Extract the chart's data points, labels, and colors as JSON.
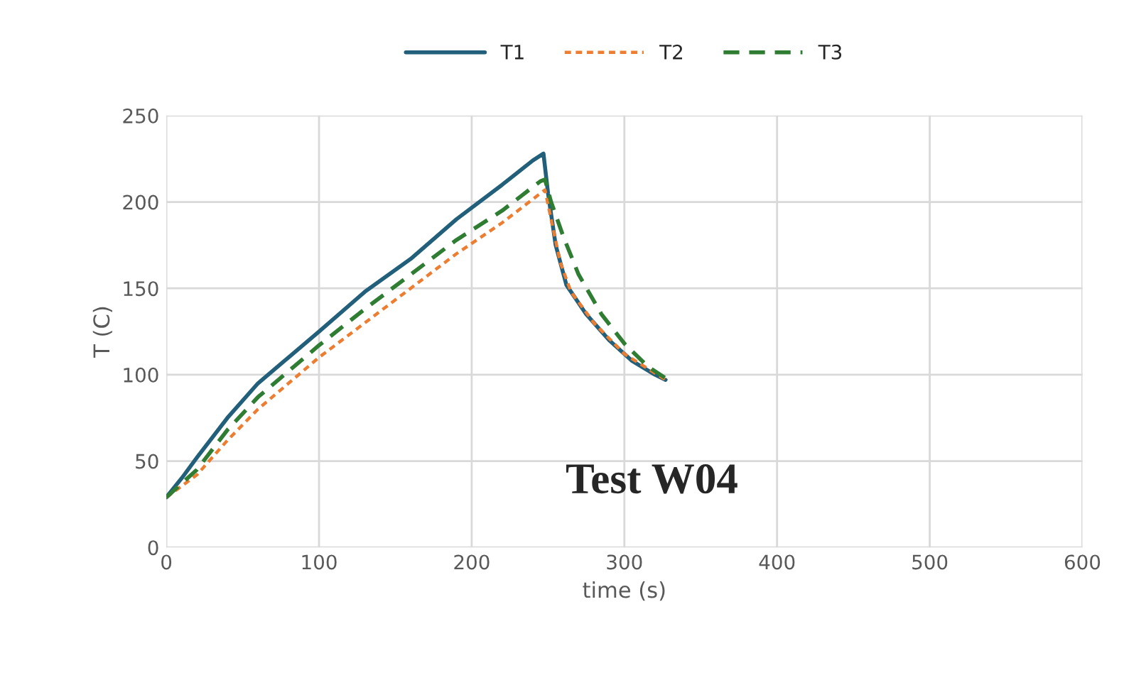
{
  "chart_data": {
    "type": "line",
    "xlabel": "time (s)",
    "ylabel": "T (C)",
    "annotations": [
      "Test W04"
    ],
    "xlim": [
      0,
      600
    ],
    "xticks": [
      0,
      100,
      200,
      300,
      400,
      500,
      600
    ],
    "ylim": [
      0,
      250
    ],
    "yticks": [
      0,
      50,
      100,
      150,
      200,
      250
    ],
    "grid": true,
    "legend": "top",
    "series": [
      {
        "name": "T1",
        "color": "#215f7a",
        "line_style": "solid",
        "x": [
          0,
          10,
          20,
          40,
          60,
          80,
          100,
          130,
          160,
          190,
          220,
          240,
          247,
          250,
          255,
          262,
          275,
          290,
          305,
          320,
          327
        ],
        "values": [
          29,
          40,
          52,
          75,
          95,
          110,
          125,
          148,
          167,
          190,
          210,
          224,
          228,
          205,
          175,
          152,
          135,
          120,
          108,
          100,
          97
        ]
      },
      {
        "name": "T2",
        "color": "#ed7d31",
        "line_style": "dotted",
        "x": [
          0,
          20,
          40,
          60,
          100,
          130,
          160,
          190,
          220,
          245,
          248,
          252,
          258,
          265,
          280,
          300,
          327
        ],
        "values": [
          29,
          42,
          62,
          80,
          110,
          130,
          150,
          170,
          188,
          205,
          207,
          190,
          165,
          148,
          130,
          112,
          97
        ]
      },
      {
        "name": "T3",
        "color": "#2e7d32",
        "line_style": "dashed",
        "x": [
          0,
          20,
          40,
          60,
          100,
          130,
          160,
          190,
          220,
          245,
          248,
          252,
          260,
          270,
          285,
          300,
          315,
          327
        ],
        "values": [
          29,
          45,
          68,
          87,
          117,
          138,
          158,
          178,
          195,
          212,
          213,
          200,
          180,
          158,
          135,
          118,
          105,
          98
        ]
      }
    ]
  }
}
